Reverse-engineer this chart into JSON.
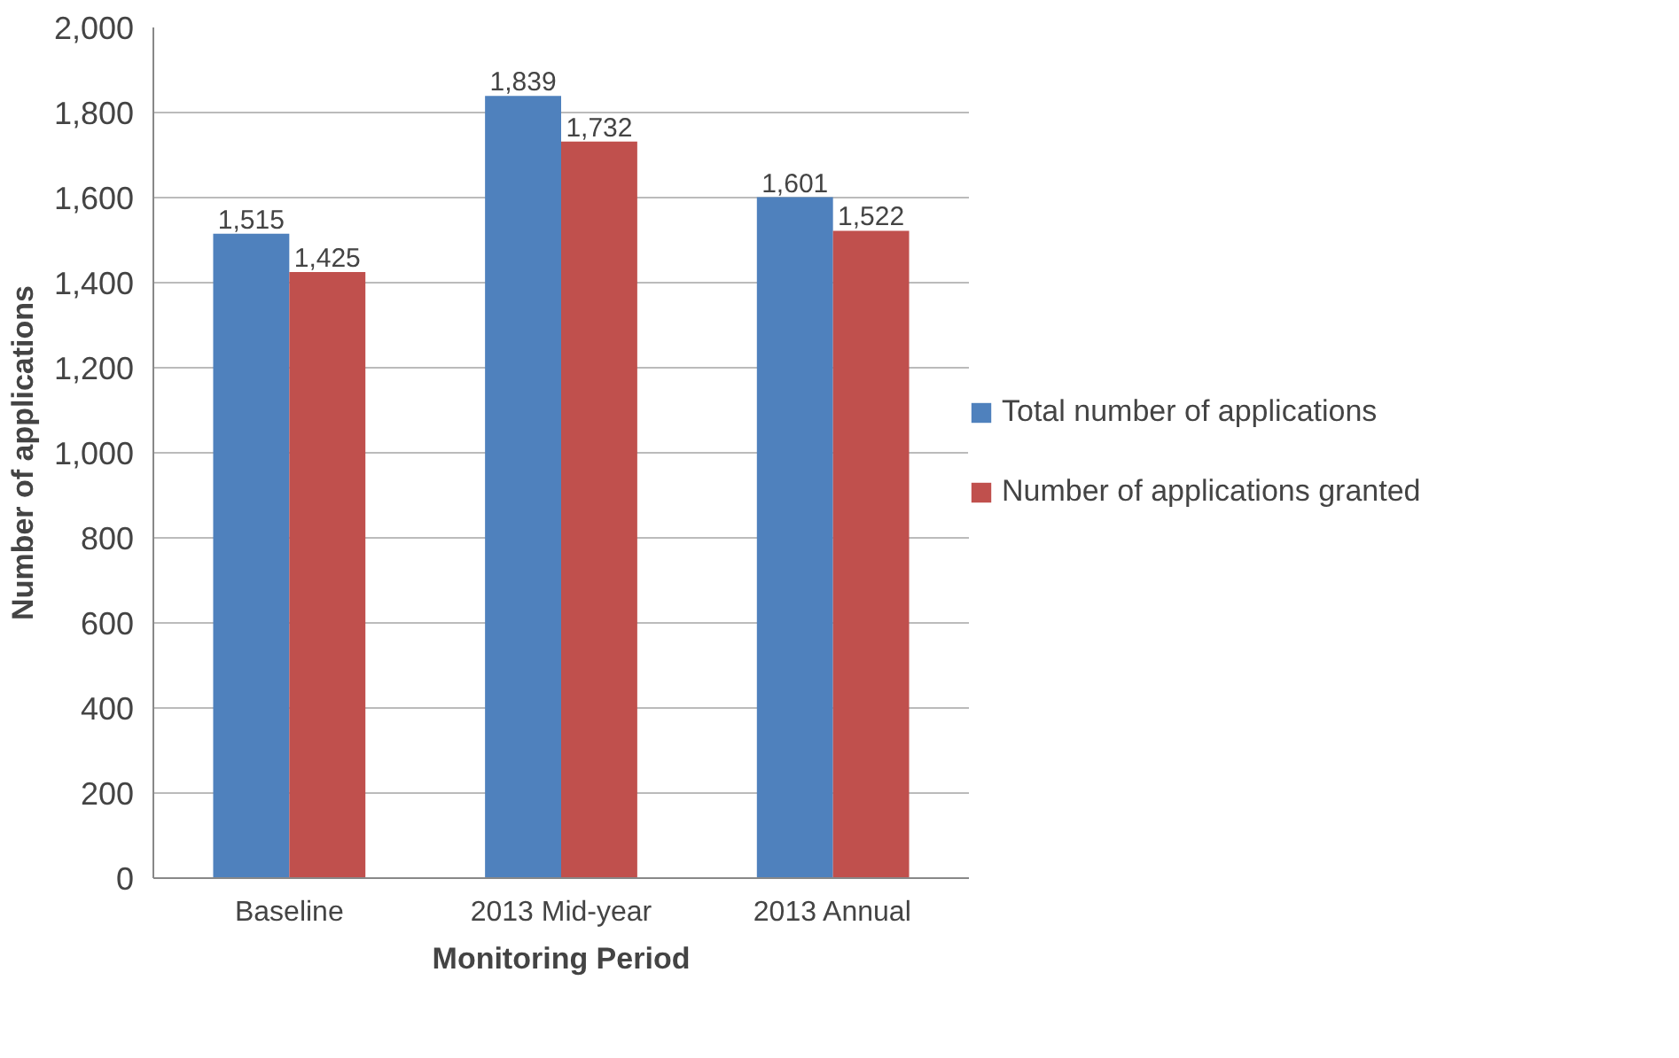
{
  "chart_data": {
    "type": "bar",
    "xlabel": "Monitoring Period",
    "ylabel": "Number of applications",
    "categories": [
      "Baseline",
      "2013 Mid-year",
      "2013 Annual"
    ],
    "series": [
      {
        "name": "Total number of applications",
        "color": "#4f81bd",
        "values": [
          1515,
          1839,
          1601
        ],
        "value_labels": [
          "1,515",
          "1,839",
          "1,601"
        ]
      },
      {
        "name": "Number of applications granted",
        "color": "#c0504d",
        "values": [
          1425,
          1732,
          1522
        ],
        "value_labels": [
          "1,425",
          "1,732",
          "1,522"
        ]
      }
    ],
    "ylim": [
      0,
      2000
    ],
    "yticks": [
      0,
      {
        "value": 200,
        "label": "200"
      },
      {
        "value": 400,
        "label": "400"
      },
      {
        "value": 600,
        "label": "600"
      },
      {
        "value": 800,
        "label": "800"
      },
      {
        "value": 1000,
        "label": "1,000"
      },
      {
        "value": 1200,
        "label": "1,200"
      },
      {
        "value": 1400,
        "label": "1,400"
      },
      {
        "value": 1600,
        "label": "1,600"
      },
      {
        "value": 1800,
        "label": "1,800"
      },
      {
        "value": 2000,
        "label": "2,000"
      }
    ],
    "grid": "y",
    "legend": "right"
  }
}
